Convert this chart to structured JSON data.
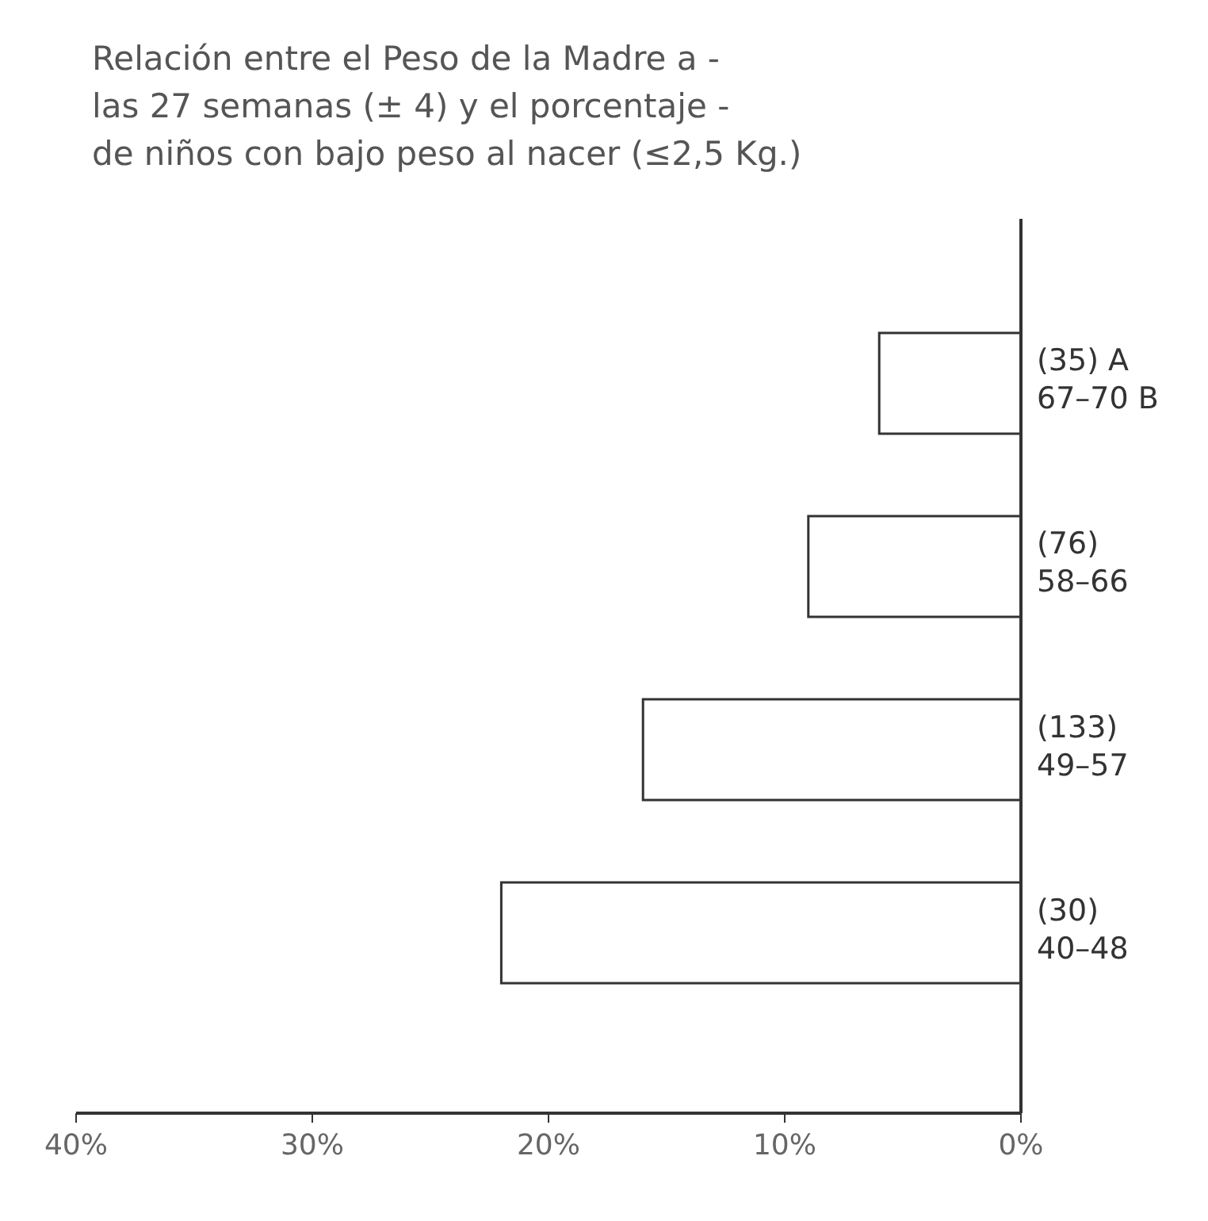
{
  "chart_data": {
    "type": "bar",
    "orientation": "horizontal",
    "title": "Relación entre el Peso de la Madre a -\nlas 27 semanas (± 4) y el porcentaje -\nde niños con bajo peso al nacer (≤2,5 Kg.)",
    "categories": [
      "(35) A\n67–70 B",
      "(76)\n58–66",
      "(133)\n49–57",
      "(30)\n40–48"
    ],
    "values": [
      6,
      9,
      16,
      22
    ],
    "color": "#ffffff",
    "xlim": [
      40,
      0
    ],
    "xticks": [
      {
        "value": 40,
        "label": "40%"
      },
      {
        "value": 30,
        "label": "30%"
      },
      {
        "value": 20,
        "label": "20%"
      },
      {
        "value": 10,
        "label": "10%"
      },
      {
        "value": 0,
        "label": "0%"
      }
    ],
    "grid": false
  }
}
